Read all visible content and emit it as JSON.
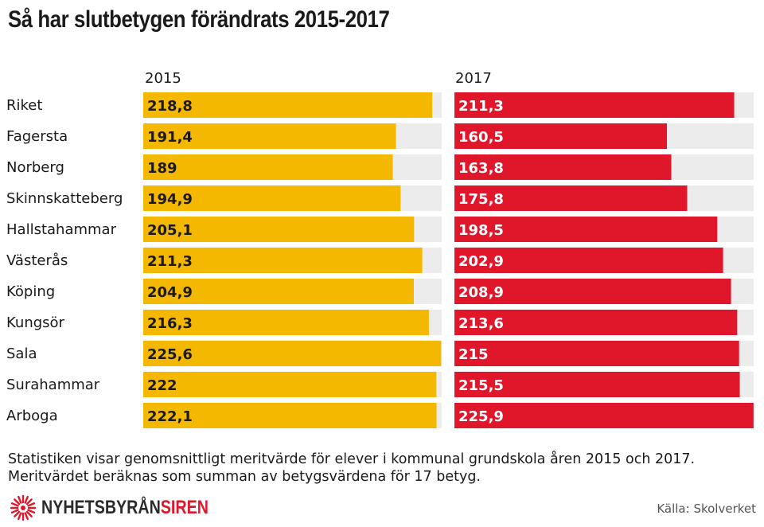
{
  "title": "Så har slutbetygen förändrats 2015-2017",
  "chart_data": {
    "type": "bar",
    "orientation": "horizontal",
    "categories": [
      "Riket",
      "Fagersta",
      "Norberg",
      "Skinnskatteberg",
      "Hallstahammar",
      "Västerås",
      "Köping",
      "Kungsör",
      "Sala",
      "Surahammar",
      "Arboga"
    ],
    "series": [
      {
        "name": "2015",
        "color": "#f5b800",
        "values": [
          218.8,
          191.4,
          189,
          194.9,
          205.1,
          211.3,
          204.9,
          216.3,
          225.6,
          222,
          222.1
        ],
        "labels": [
          "218,8",
          "191,4",
          "189",
          "194,9",
          "205,1",
          "211,3",
          "204,9",
          "216,3",
          "225,6",
          "222",
          "222,1"
        ]
      },
      {
        "name": "2017",
        "color": "#e0162b",
        "values": [
          211.3,
          160.5,
          163.8,
          175.8,
          198.5,
          202.9,
          208.9,
          213.6,
          215,
          215.5,
          225.9
        ],
        "labels": [
          "211,3",
          "160,5",
          "163,8",
          "175,8",
          "198,5",
          "202,9",
          "208,9",
          "213,6",
          "215",
          "215,5",
          "225,9"
        ]
      }
    ],
    "track_color": "#ececec",
    "xlim": [
      0,
      226
    ]
  },
  "note_lines": [
    "Statistiken visar genomsnittligt meritvärde för elever i kommunal grundskola åren 2015 och 2017.",
    "Meritvärdet beräknas som summan av betygsvärdena för 17 betyg."
  ],
  "logo": {
    "part1": "NYHETSBYRÅN",
    "part2": "SIREN",
    "icon": "siren-burst-icon"
  },
  "source": "Källa: Skolverket"
}
